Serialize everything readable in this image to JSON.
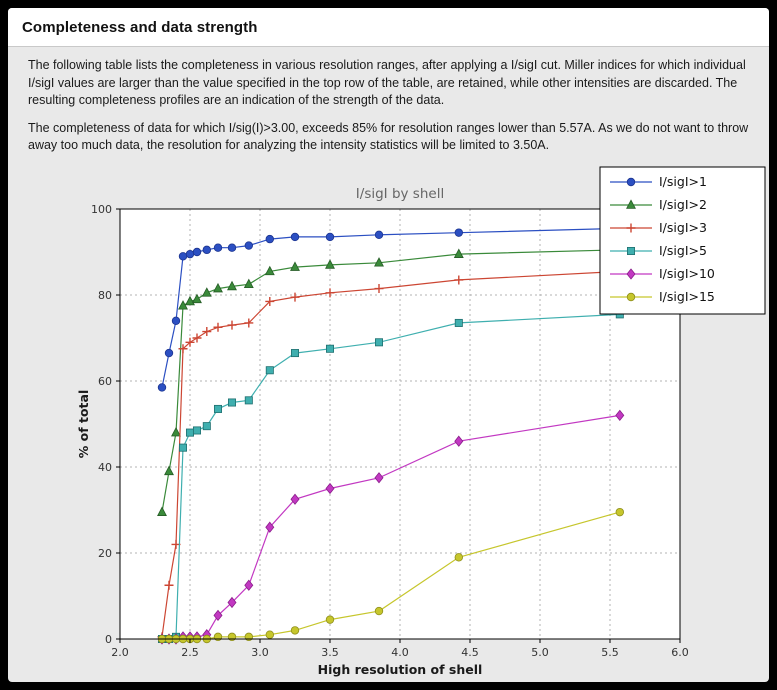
{
  "header": {
    "title": "Completeness and data strength"
  },
  "paragraphs": {
    "p1": "The following table lists the completeness in various resolution ranges, after applying a I/sigI cut. Miller indices for which individual I/sigI values are larger than the value specified in the top row of the table, are retained, while other intensities are discarded. The resulting completeness profiles are an indication of the strength of the data.",
    "p2": "The completeness of data for which I/sig(I)>3.00, exceeds 85% for resolution ranges lower than 5.57A. As we do not want to throw away too much data, the resolution for analyzing the intensity statistics will be limited to 3.50A."
  },
  "chart_data": {
    "type": "line",
    "title": "I/sigI by shell",
    "xlabel": "High resolution of shell",
    "ylabel": "% of total",
    "xlim": [
      2.0,
      6.0
    ],
    "ylim": [
      0,
      100
    ],
    "xticks": [
      2.0,
      2.5,
      3.0,
      3.5,
      4.0,
      4.5,
      5.0,
      5.5,
      6.0
    ],
    "yticks": [
      0,
      20,
      40,
      60,
      80,
      100
    ],
    "grid": true,
    "legend_position": "top-right",
    "colors": {
      "plot_background": "#ffffff",
      "panel_background": "#e9e9e9",
      "grid": "#b3b3b3",
      "frame": "#000000",
      "title_text": "#666666"
    },
    "x": [
      2.3,
      2.35,
      2.4,
      2.45,
      2.5,
      2.55,
      2.62,
      2.7,
      2.8,
      2.92,
      3.07,
      3.25,
      3.5,
      3.85,
      4.42,
      5.57
    ],
    "series": [
      {
        "name": "I/sigI>1",
        "color": "#2b4fc2",
        "edge": "#1c348f",
        "marker": "circle",
        "values": [
          58.5,
          66.5,
          74.0,
          89.0,
          89.5,
          90.0,
          90.5,
          91.0,
          91.0,
          91.5,
          93.0,
          93.5,
          93.5,
          94.0,
          94.5,
          95.5
        ]
      },
      {
        "name": "I/sigI>2",
        "color": "#3a8a3a",
        "edge": "#265c26",
        "marker": "triangle",
        "values": [
          29.5,
          39.0,
          48.0,
          77.5,
          78.5,
          79.0,
          80.5,
          81.5,
          82.0,
          82.5,
          85.5,
          86.5,
          87.0,
          87.5,
          89.5,
          90.5
        ]
      },
      {
        "name": "I/sigI>3",
        "color": "#cc4633",
        "edge": "#99301f",
        "marker": "plus",
        "values": [
          0.5,
          12.5,
          22.0,
          67.5,
          69.0,
          70.0,
          71.5,
          72.5,
          73.0,
          73.5,
          78.5,
          79.5,
          80.5,
          81.5,
          83.5,
          85.5
        ]
      },
      {
        "name": "I/sigI>5",
        "color": "#3fafaf",
        "edge": "#1f6f6f",
        "marker": "square",
        "values": [
          0.0,
          0.0,
          0.5,
          44.5,
          48.0,
          48.5,
          49.5,
          53.5,
          55.0,
          55.5,
          62.5,
          66.5,
          67.5,
          69.0,
          73.5,
          75.5
        ]
      },
      {
        "name": "I/sigI>10",
        "color": "#c238c2",
        "edge": "#8a1f8a",
        "marker": "diamond",
        "values": [
          0.0,
          0.0,
          0.0,
          0.5,
          0.5,
          0.5,
          1.0,
          5.5,
          8.5,
          12.5,
          26.0,
          32.5,
          35.0,
          37.5,
          46.0,
          52.0
        ]
      },
      {
        "name": "I/sigI>15",
        "color": "#c6c62c",
        "edge": "#8f8f1c",
        "marker": "circle",
        "values": [
          0.0,
          0.0,
          0.0,
          0.0,
          0.0,
          0.0,
          0.0,
          0.5,
          0.5,
          0.5,
          1.0,
          2.0,
          4.5,
          6.5,
          19.0,
          29.5
        ]
      }
    ]
  }
}
